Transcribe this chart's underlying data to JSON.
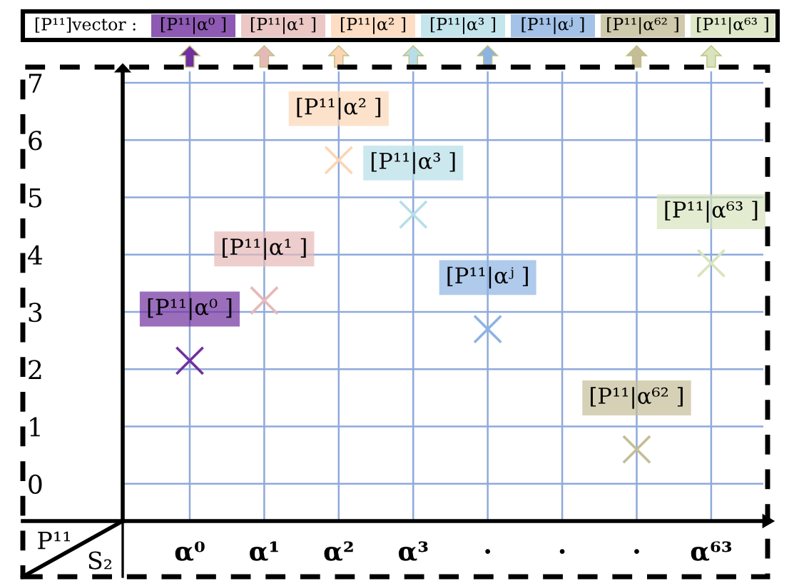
{
  "chart_data": {
    "type": "scatter",
    "categories": [
      "α⁰",
      "α¹",
      "α²",
      "α³",
      "·",
      "·",
      "·",
      "α⁶³"
    ],
    "values": [
      2.15,
      3.2,
      5.65,
      4.7,
      2.7,
      null,
      0.6,
      3.85
    ],
    "colors": [
      "#7030a0",
      "#e6b9b8",
      "#fcd5b5",
      "#b7dee8",
      "#8db3e2",
      null,
      "#c4bd97",
      "#d7e4bc"
    ],
    "xlabel": "S₂",
    "ylabel": "P¹¹",
    "ylim": [
      -0.65,
      7.2
    ],
    "yticks": [
      0,
      1,
      2,
      3,
      4,
      5,
      6,
      7
    ],
    "grid": true,
    "marker": "cross",
    "value_labels": [
      "[P¹¹|α⁰ ]",
      "[P¹¹|α¹ ]",
      "[P¹¹|α² ]",
      "[P¹¹|α³ ]",
      "[P¹¹|αʲ ]",
      null,
      "[P¹¹|α⁶² ]",
      "[P¹¹|α⁶³ ]"
    ],
    "annotations": [
      "[P¹¹]vector :",
      "[P¹¹|α⁰ ]",
      "[P¹¹|α¹ ]",
      "[P¹¹|α² ]",
      "[P¹¹|α³ ]",
      "[P¹¹|αʲ ]",
      "[P¹¹|α⁶² ]",
      "[P¹¹|α⁶³ ]"
    ]
  }
}
